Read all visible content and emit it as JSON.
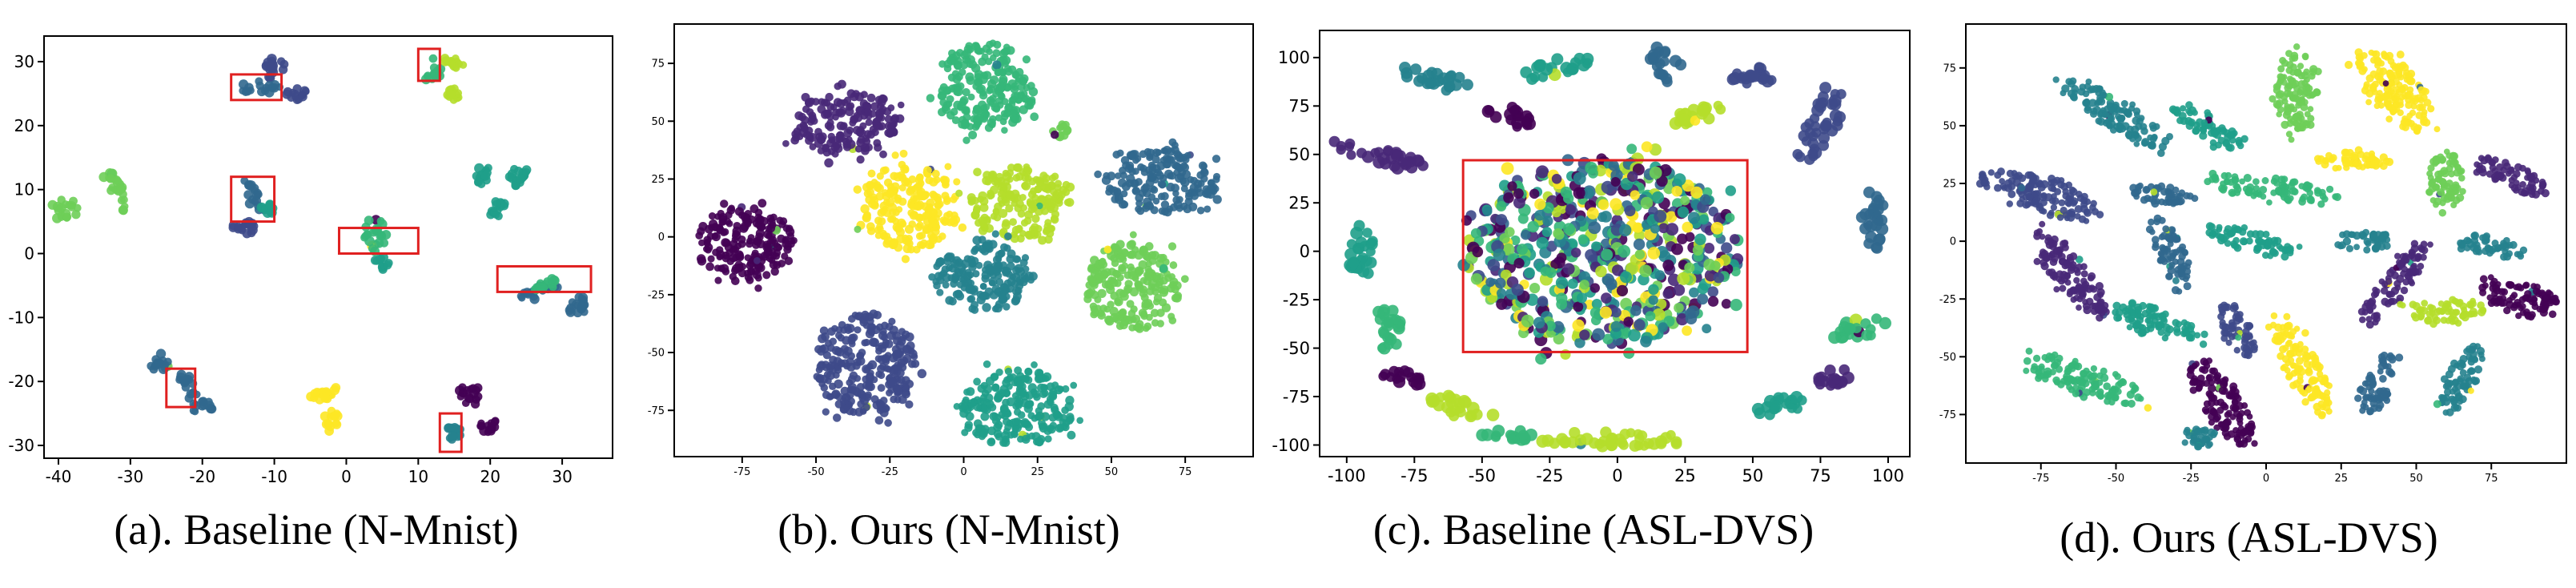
{
  "palette": [
    "#440154",
    "#482878",
    "#3e4a89",
    "#31688e",
    "#26828e",
    "#1f9e89",
    "#35b779",
    "#6ece58",
    "#b5de2b",
    "#fde725"
  ],
  "highlight_color": "#e02020",
  "chart_data": [
    {
      "id": "a",
      "type": "scatter",
      "caption": "(a). Baseline (N-Mnist)",
      "xlim": [
        -42,
        37
      ],
      "ylim": [
        -32,
        34
      ],
      "xticks": [
        -40,
        -30,
        -20,
        -10,
        0,
        10,
        20,
        30
      ],
      "yticks": [
        -30,
        -20,
        -10,
        0,
        10,
        20,
        30
      ],
      "show_tick_labels": true,
      "clusters": [
        {
          "cx": -10,
          "cy": 29,
          "rx": 1.5,
          "ry": 1.5,
          "color": 2,
          "angle": 0
        },
        {
          "cx": -12,
          "cy": 26,
          "rx": 3,
          "ry": 1,
          "color": 3,
          "angle": 0
        },
        {
          "cx": -7,
          "cy": 25,
          "rx": 1.5,
          "ry": 1,
          "color": 2,
          "angle": 0
        },
        {
          "cx": 12,
          "cy": 28,
          "rx": 1,
          "ry": 2,
          "color": 6,
          "angle": 0
        },
        {
          "cx": 15,
          "cy": 30,
          "rx": 1.5,
          "ry": 1,
          "color": 8,
          "angle": 0
        },
        {
          "cx": 15,
          "cy": 25,
          "rx": 1,
          "ry": 1,
          "color": 8,
          "angle": 0
        },
        {
          "cx": -39,
          "cy": 7,
          "rx": 2,
          "ry": 1.5,
          "color": 7,
          "angle": 0
        },
        {
          "cx": -32,
          "cy": 10,
          "rx": 1,
          "ry": 4,
          "color": 7,
          "angle": 25
        },
        {
          "cx": -13,
          "cy": 9,
          "rx": 1,
          "ry": 3,
          "color": 3,
          "angle": 30
        },
        {
          "cx": -14,
          "cy": 4,
          "rx": 2,
          "ry": 1,
          "color": 2,
          "angle": 0
        },
        {
          "cx": -11,
          "cy": 7,
          "rx": 1,
          "ry": 1,
          "color": 5,
          "angle": 0
        },
        {
          "cx": 4,
          "cy": 3,
          "rx": 1.5,
          "ry": 3,
          "color": 6,
          "angle": 0
        },
        {
          "cx": 5,
          "cy": -1.5,
          "rx": 1,
          "ry": 1,
          "color": 5,
          "angle": 0
        },
        {
          "cx": 19,
          "cy": 12,
          "rx": 1,
          "ry": 1.5,
          "color": 5,
          "angle": 0
        },
        {
          "cx": 24,
          "cy": 12,
          "rx": 1.5,
          "ry": 1.5,
          "color": 5,
          "angle": 0
        },
        {
          "cx": 21,
          "cy": 7,
          "rx": 1,
          "ry": 1.5,
          "color": 5,
          "angle": 0
        },
        {
          "cx": 27,
          "cy": -6,
          "rx": 3,
          "ry": 1,
          "color": 3,
          "angle": 20
        },
        {
          "cx": 32,
          "cy": -8,
          "rx": 1.5,
          "ry": 1.5,
          "color": 3,
          "angle": 0
        },
        {
          "cx": 28,
          "cy": -5,
          "rx": 2,
          "ry": 0.8,
          "color": 6,
          "angle": 20
        },
        {
          "cx": -26,
          "cy": -17,
          "rx": 1.5,
          "ry": 1.5,
          "color": 3,
          "angle": 0
        },
        {
          "cx": -22,
          "cy": -21,
          "rx": 1,
          "ry": 2.5,
          "color": 3,
          "angle": 20
        },
        {
          "cx": -20,
          "cy": -24,
          "rx": 1.5,
          "ry": 1,
          "color": 3,
          "angle": 0
        },
        {
          "cx": -3,
          "cy": -22,
          "rx": 2.5,
          "ry": 1,
          "color": 9,
          "angle": 0
        },
        {
          "cx": -2,
          "cy": -26,
          "rx": 1,
          "ry": 1.5,
          "color": 9,
          "angle": 0
        },
        {
          "cx": 17,
          "cy": -22,
          "rx": 1.5,
          "ry": 1.5,
          "color": 0,
          "angle": 0
        },
        {
          "cx": 20,
          "cy": -27,
          "rx": 1.5,
          "ry": 1,
          "color": 0,
          "angle": 0
        },
        {
          "cx": 15,
          "cy": -28,
          "rx": 1,
          "ry": 1.5,
          "color": 4,
          "angle": 0
        }
      ],
      "highlight_boxes": [
        {
          "x0": -16,
          "y0": 24,
          "x1": -9,
          "y1": 28
        },
        {
          "x0": 10,
          "y0": 27,
          "x1": 13,
          "y1": 32
        },
        {
          "x0": -16,
          "y0": 5,
          "x1": -10,
          "y1": 12
        },
        {
          "x0": -1,
          "y0": 0,
          "x1": 10,
          "y1": 4
        },
        {
          "x0": 21,
          "y0": -6,
          "x1": 34,
          "y1": -2
        },
        {
          "x0": -25,
          "y0": -24,
          "x1": -21,
          "y1": -18
        },
        {
          "x0": 13,
          "y0": -31,
          "x1": 16,
          "y1": -25
        }
      ]
    },
    {
      "id": "b",
      "type": "scatter",
      "caption": "(b). Ours (N-Mnist)",
      "xlim": [
        -98,
        98
      ],
      "ylim": [
        -95,
        92
      ],
      "xticks": [
        -75,
        -50,
        -25,
        0,
        25,
        50,
        75
      ],
      "yticks": [
        -75,
        -50,
        -25,
        0,
        25,
        50,
        75
      ],
      "show_tick_labels": true,
      "clusters": [
        {
          "cx": -40,
          "cy": 49,
          "rx": 18,
          "ry": 14,
          "color": 1,
          "angle": 10
        },
        {
          "cx": 8,
          "cy": 64,
          "rx": 16,
          "ry": 20,
          "color": 6,
          "angle": 0
        },
        {
          "cx": 33,
          "cy": 46,
          "rx": 3,
          "ry": 3,
          "color": 7,
          "angle": 0
        },
        {
          "cx": 67,
          "cy": 24,
          "rx": 19,
          "ry": 14,
          "color": 3,
          "angle": 0
        },
        {
          "cx": -18,
          "cy": 13,
          "rx": 16,
          "ry": 19,
          "color": 9,
          "angle": 0
        },
        {
          "cx": 19,
          "cy": 15,
          "rx": 17,
          "ry": 16,
          "color": 8,
          "angle": 0
        },
        {
          "cx": -74,
          "cy": -3,
          "rx": 17,
          "ry": 16,
          "color": 0,
          "angle": 0
        },
        {
          "cx": 7,
          "cy": -17,
          "rx": 17,
          "ry": 15,
          "color": 4,
          "angle": 0
        },
        {
          "cx": 57,
          "cy": -21,
          "rx": 16,
          "ry": 19,
          "color": 7,
          "angle": 0
        },
        {
          "cx": -33,
          "cy": -55,
          "rx": 17,
          "ry": 22,
          "color": 2,
          "angle": 0
        },
        {
          "cx": 18,
          "cy": -74,
          "rx": 19,
          "ry": 17,
          "color": 5,
          "angle": 0
        }
      ],
      "highlight_boxes": []
    },
    {
      "id": "c",
      "type": "scatter",
      "caption": "(c). Baseline (ASL-DVS)",
      "xlim": [
        -110,
        108
      ],
      "ylim": [
        -106,
        114
      ],
      "xticks": [
        -100,
        -75,
        -50,
        -25,
        0,
        25,
        50,
        75,
        100
      ],
      "yticks": [
        -100,
        -75,
        -50,
        -25,
        0,
        25,
        50,
        75,
        100
      ],
      "show_tick_labels": true,
      "clusters": [
        {
          "cx": -5,
          "cy": 0,
          "rx": 50,
          "ry": 48,
          "color": -1,
          "angle": 0
        },
        {
          "cx": -68,
          "cy": 90,
          "rx": 12,
          "ry": 5,
          "color": 4,
          "angle": -20
        },
        {
          "cx": -22,
          "cy": 95,
          "rx": 14,
          "ry": 4,
          "color": 5,
          "angle": 20
        },
        {
          "cx": 18,
          "cy": 97,
          "rx": 6,
          "ry": 8,
          "color": 3,
          "angle": 0
        },
        {
          "cx": 52,
          "cy": 91,
          "rx": 10,
          "ry": 5,
          "color": 2,
          "angle": 20
        },
        {
          "cx": 75,
          "cy": 65,
          "rx": 6,
          "ry": 20,
          "color": 2,
          "angle": -20
        },
        {
          "cx": -88,
          "cy": 50,
          "rx": 18,
          "ry": 5,
          "color": 1,
          "angle": -20
        },
        {
          "cx": 95,
          "cy": 15,
          "rx": 5,
          "ry": 14,
          "color": 3,
          "angle": 0
        },
        {
          "cx": -95,
          "cy": 0,
          "rx": 5,
          "ry": 15,
          "color": 5,
          "angle": 0
        },
        {
          "cx": -85,
          "cy": -40,
          "rx": 5,
          "ry": 12,
          "color": 6,
          "angle": 0
        },
        {
          "cx": 90,
          "cy": -40,
          "rx": 10,
          "ry": 5,
          "color": 6,
          "angle": 20
        },
        {
          "cx": -60,
          "cy": -80,
          "rx": 12,
          "ry": 5,
          "color": 8,
          "angle": -20
        },
        {
          "cx": 60,
          "cy": -80,
          "rx": 10,
          "ry": 5,
          "color": 5,
          "angle": 20
        },
        {
          "cx": 0,
          "cy": -97,
          "rx": 30,
          "ry": 4,
          "color": 8,
          "angle": 0
        },
        {
          "cx": -40,
          "cy": -95,
          "rx": 10,
          "ry": 3,
          "color": 6,
          "angle": 0
        },
        {
          "cx": -40,
          "cy": 70,
          "rx": 10,
          "ry": 4,
          "color": 0,
          "angle": -25
        },
        {
          "cx": 30,
          "cy": 70,
          "rx": 12,
          "ry": 4,
          "color": 8,
          "angle": 20
        },
        {
          "cx": 80,
          "cy": -65,
          "rx": 8,
          "ry": 4,
          "color": 1,
          "angle": 20
        },
        {
          "cx": -80,
          "cy": -65,
          "rx": 8,
          "ry": 4,
          "color": 0,
          "angle": -20
        }
      ],
      "highlight_boxes": [
        {
          "x0": -57,
          "y0": -52,
          "x1": 48,
          "y1": 47
        }
      ]
    },
    {
      "id": "d",
      "type": "scatter",
      "caption": "(d). Ours (ASL-DVS)",
      "xlim": [
        -100,
        100
      ],
      "ylim": [
        -96,
        94
      ],
      "xticks": [
        -75,
        -50,
        -25,
        0,
        25,
        50,
        75
      ],
      "yticks": [
        -75,
        -50,
        -25,
        0,
        25,
        50,
        75
      ],
      "show_tick_labels": true,
      "clusters": [
        {
          "cx": -50,
          "cy": 55,
          "rx": 22,
          "ry": 6,
          "color": 4,
          "angle": -40
        },
        {
          "cx": -20,
          "cy": 50,
          "rx": 14,
          "ry": 5,
          "color": 5,
          "angle": -40
        },
        {
          "cx": 10,
          "cy": 65,
          "rx": 7,
          "ry": 18,
          "color": 7,
          "angle": 0
        },
        {
          "cx": 43,
          "cy": 65,
          "rx": 9,
          "ry": 20,
          "color": 9,
          "angle": 30
        },
        {
          "cx": -75,
          "cy": 20,
          "rx": 22,
          "ry": 7,
          "color": 2,
          "angle": -25
        },
        {
          "cx": -35,
          "cy": 20,
          "rx": 12,
          "ry": 4,
          "color": 3,
          "angle": -10
        },
        {
          "cx": 0,
          "cy": 23,
          "rx": 20,
          "ry": 5,
          "color": 6,
          "angle": -10
        },
        {
          "cx": 30,
          "cy": 35,
          "rx": 14,
          "ry": 4,
          "color": 9,
          "angle": 0
        },
        {
          "cx": 60,
          "cy": 25,
          "rx": 6,
          "ry": 14,
          "color": 7,
          "angle": 0
        },
        {
          "cx": 82,
          "cy": 28,
          "rx": 14,
          "ry": 5,
          "color": 1,
          "angle": -30
        },
        {
          "cx": 75,
          "cy": -2,
          "rx": 12,
          "ry": 4,
          "color": 4,
          "angle": -15
        },
        {
          "cx": 32,
          "cy": 0,
          "rx": 10,
          "ry": 4,
          "color": 4,
          "angle": 0
        },
        {
          "cx": -5,
          "cy": 0,
          "rx": 15,
          "ry": 5,
          "color": 5,
          "angle": -20
        },
        {
          "cx": -32,
          "cy": -5,
          "rx": 5,
          "ry": 16,
          "color": 3,
          "angle": 20
        },
        {
          "cx": -65,
          "cy": -15,
          "rx": 6,
          "ry": 22,
          "color": 1,
          "angle": 30
        },
        {
          "cx": 42,
          "cy": -20,
          "rx": 5,
          "ry": 20,
          "color": 1,
          "angle": -30
        },
        {
          "cx": 60,
          "cy": -30,
          "rx": 14,
          "ry": 5,
          "color": 8,
          "angle": 0
        },
        {
          "cx": 85,
          "cy": -25,
          "rx": 14,
          "ry": 7,
          "color": 0,
          "angle": -20
        },
        {
          "cx": -38,
          "cy": -35,
          "rx": 16,
          "ry": 6,
          "color": 5,
          "angle": -25
        },
        {
          "cx": -10,
          "cy": -38,
          "rx": 5,
          "ry": 12,
          "color": 2,
          "angle": 20
        },
        {
          "cx": -60,
          "cy": -60,
          "rx": 20,
          "ry": 7,
          "color": 6,
          "angle": -25
        },
        {
          "cx": -15,
          "cy": -70,
          "rx": 7,
          "ry": 20,
          "color": 0,
          "angle": 25
        },
        {
          "cx": 12,
          "cy": -55,
          "rx": 6,
          "ry": 22,
          "color": 9,
          "angle": 20
        },
        {
          "cx": 37,
          "cy": -62,
          "rx": 5,
          "ry": 14,
          "color": 3,
          "angle": -20
        },
        {
          "cx": 65,
          "cy": -60,
          "rx": 5,
          "ry": 16,
          "color": 4,
          "angle": -20
        },
        {
          "cx": -22,
          "cy": -85,
          "rx": 8,
          "ry": 4,
          "color": 4,
          "angle": 0
        }
      ],
      "highlight_boxes": []
    }
  ]
}
